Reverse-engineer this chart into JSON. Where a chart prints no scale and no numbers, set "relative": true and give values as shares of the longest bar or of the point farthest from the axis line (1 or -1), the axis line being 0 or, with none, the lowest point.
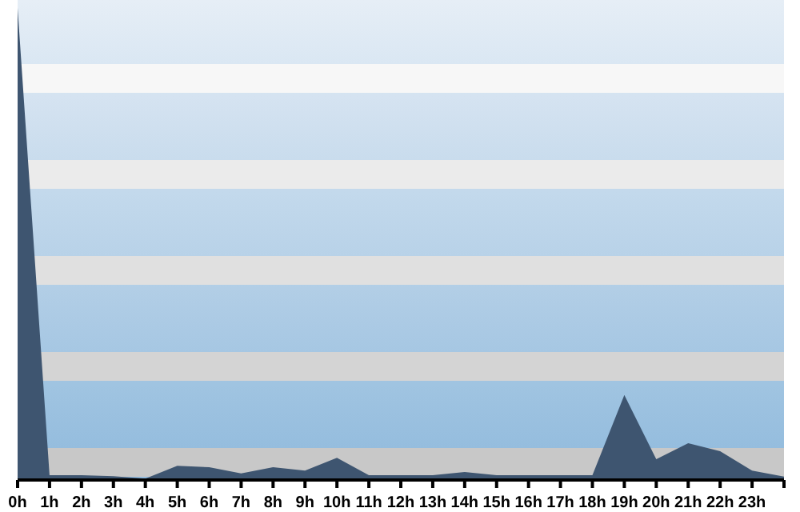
{
  "chart_data": {
    "type": "area",
    "relative": true,
    "categories": [
      "0h",
      "1h",
      "2h",
      "3h",
      "4h",
      "5h",
      "6h",
      "7h",
      "8h",
      "9h",
      "10h",
      "11h",
      "12h",
      "13h",
      "14h",
      "15h",
      "16h",
      "17h",
      "18h",
      "19h",
      "20h",
      "21h",
      "22h",
      "23h",
      null
    ],
    "series": [
      {
        "color": "#3e5570",
        "values": [
          1,
          0.01,
          0.01,
          0.008,
          0.003,
          0.03,
          0.027,
          0.014,
          0.027,
          0.02,
          0.047,
          0.01,
          0.01,
          0.01,
          0.017,
          0.01,
          0.01,
          0.01,
          0.01,
          0.18,
          0.044,
          0.078,
          0.061,
          0.02,
          0.007
        ]
      }
    ]
  }
}
